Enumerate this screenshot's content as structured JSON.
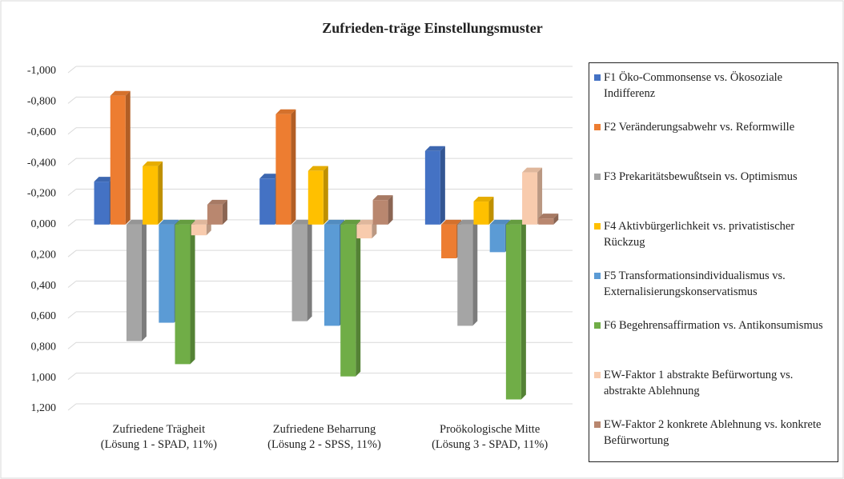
{
  "chart_data": {
    "type": "bar",
    "title": "Zufrieden-träge Einstellungsmuster",
    "categories": [
      "Zufriedene Trägheit\n(Lösung 1 - SPAD, 11%)",
      "Zufriedene Beharrung\n(Lösung 2 - SPSS, 11%)",
      "Proökologische Mitte\n(Lösung 3 - SPAD, 11%)"
    ],
    "series": [
      {
        "name": "F1 Öko-Commonsense vs. Ökosoziale Indifferenz",
        "color": "#4472c4",
        "values": [
          -0.28,
          -0.3,
          -0.48
        ]
      },
      {
        "name": "F2 Veränderungsabwehr vs. Reformwille",
        "color": "#ed7d31",
        "values": [
          -0.84,
          -0.72,
          0.22
        ]
      },
      {
        "name": "F3 Prekaritätsbewußtsein vs. Optimismus",
        "color": "#a5a5a5",
        "values": [
          0.76,
          0.63,
          0.66
        ]
      },
      {
        "name": "F4 Aktivbürgerlichkeit vs. privatistischer Rückzug",
        "color": "#ffc000",
        "values": [
          -0.38,
          -0.35,
          -0.15
        ]
      },
      {
        "name": "F5 Transformationsindividualismus vs. Externalisierungskonservatismus",
        "color": "#5b9bd5",
        "values": [
          0.64,
          0.66,
          0.18
        ]
      },
      {
        "name": "F6 Begehrensaffirmation vs. Antikonsumismus",
        "color": "#70ad47",
        "values": [
          0.91,
          0.99,
          1.14
        ]
      },
      {
        "name": "EW-Faktor 1 abstrakte Befürwortung vs. abstrakte Ablehnung",
        "color": "#f8cbad",
        "values": [
          0.07,
          0.09,
          -0.34
        ]
      },
      {
        "name": "EW-Faktor 2 konkrete Ablehnung vs. konkrete Befürwortung",
        "color": "#b9876f",
        "values": [
          -0.13,
          -0.16,
          -0.04
        ]
      }
    ],
    "ylim": [
      -1.0,
      1.2
    ],
    "inverted": true,
    "yticks": [
      {
        "value": -1.0,
        "label": "-1,000"
      },
      {
        "value": -0.8,
        "label": "-0,800"
      },
      {
        "value": -0.6,
        "label": "-0,600"
      },
      {
        "value": -0.4,
        "label": "-0,400"
      },
      {
        "value": -0.2,
        "label": "-0,200"
      },
      {
        "value": 0,
        "label": "0,000"
      },
      {
        "value": 0.2,
        "label": "0,200"
      },
      {
        "value": 0.4,
        "label": "0,400"
      },
      {
        "value": 0.6,
        "label": "0,600"
      },
      {
        "value": 0.8,
        "label": "0,800"
      },
      {
        "value": 1.0,
        "label": "1,000"
      },
      {
        "value": 1.2,
        "label": "1,200"
      }
    ],
    "grid": true,
    "legend": "right"
  }
}
